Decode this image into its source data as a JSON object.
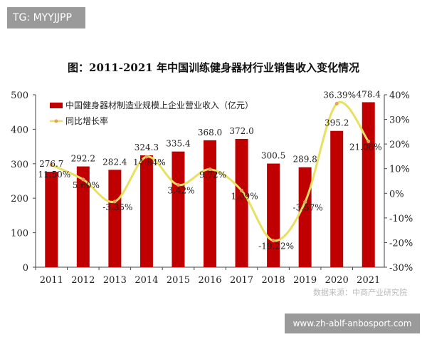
{
  "tag": "TG: MYYJJPP",
  "watermark": "www.zh-ablf-anbosport.com",
  "source_note": "数据来源：中商产业研究院",
  "chart_data": {
    "type": "bar+line",
    "title": "图：2011-2021 年中国训练健身器材行业销售收入变化情况",
    "categories": [
      "2011",
      "2012",
      "2013",
      "2014",
      "2015",
      "2016",
      "2017",
      "2018",
      "2019",
      "2020",
      "2021"
    ],
    "series": [
      {
        "name": "中国健身器材制造业规模上企业营业收入（亿元）",
        "type": "bar",
        "axis": "left",
        "color": "#c00000",
        "values": [
          276.7,
          292.2,
          282.4,
          324.3,
          335.4,
          368.0,
          372.0,
          300.5,
          289.8,
          395.2,
          478.4
        ],
        "labels": [
          "276.7",
          "292.2",
          "282.4",
          "324.3",
          "335.4",
          "368.0",
          "372.0",
          "300.5",
          "289.8",
          "395.2",
          "478.4"
        ]
      },
      {
        "name": "同比增长率",
        "type": "line",
        "axis": "right",
        "color": "#e8e060",
        "values": [
          11.5,
          5.6,
          -3.35,
          14.84,
          3.42,
          9.72,
          1.09,
          -19.22,
          -3.57,
          36.39,
          21.06
        ],
        "labels": [
          "11.50%",
          "5.60%",
          "-3.35%",
          "14.84%",
          "3.42%",
          "9.72%",
          "1.09%",
          "-19.22%",
          "-3.57%",
          "36.39%",
          "21.06%"
        ]
      }
    ],
    "left_axis": {
      "ylim": [
        0,
        500
      ],
      "ticks": [
        "0",
        "100",
        "200",
        "300",
        "400",
        "500"
      ]
    },
    "right_axis": {
      "ylim": [
        -30,
        40
      ],
      "ticks": [
        "-30%",
        "-20%",
        "-10%",
        "0%",
        "10%",
        "20%",
        "30%",
        "40%"
      ]
    },
    "grid": false,
    "legend": "top-left"
  }
}
